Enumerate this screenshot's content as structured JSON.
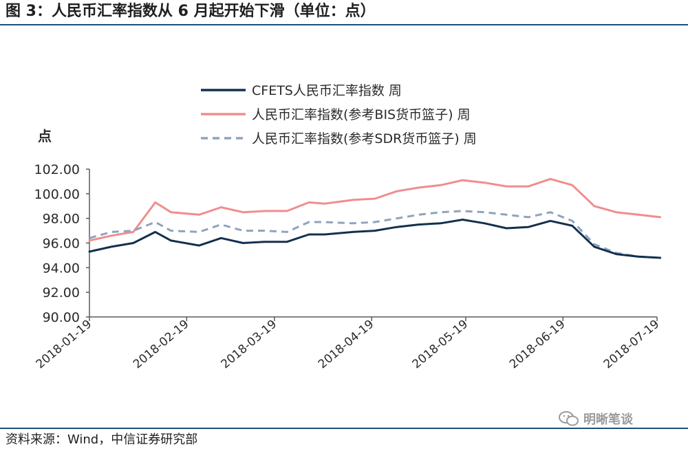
{
  "header": {
    "title": "图 3：人民币汇率指数从 6 月起开始下滑（单位：点）"
  },
  "footer": {
    "source": "资料来源：Wind，中信证券研究部"
  },
  "watermark": {
    "text": "明晰笔谈",
    "icon": "wechat-icon"
  },
  "colors": {
    "cfets": "#12304f",
    "bis": "#f08d8d",
    "sdr": "#8fa3bd",
    "axis": "#5a5a5a",
    "rule": "#1a4f7a"
  },
  "chart_data": {
    "type": "line",
    "ylabel": "点",
    "ylim": [
      90,
      102
    ],
    "yticks": [
      90,
      92,
      94,
      96,
      98,
      100,
      102
    ],
    "ytick_labels": [
      "90.00",
      "92.00",
      "94.00",
      "96.00",
      "98.00",
      "100.00",
      "102.00"
    ],
    "xtick_labels": [
      "2018-01-19",
      "2018-02-19",
      "2018-03-19",
      "2018-04-19",
      "2018-05-19",
      "2018-06-19",
      "2018-07-19"
    ],
    "x": [
      "2018-01-19",
      "2018-01-26",
      "2018-02-02",
      "2018-02-09",
      "2018-02-14",
      "2018-02-23",
      "2018-03-02",
      "2018-03-09",
      "2018-03-16",
      "2018-03-23",
      "2018-03-30",
      "2018-04-04",
      "2018-04-13",
      "2018-04-20",
      "2018-04-27",
      "2018-05-04",
      "2018-05-11",
      "2018-05-18",
      "2018-05-25",
      "2018-06-01",
      "2018-06-08",
      "2018-06-15",
      "2018-06-22",
      "2018-06-29",
      "2018-07-06",
      "2018-07-13",
      "2018-07-20"
    ],
    "legend_position": "top",
    "grid": false,
    "series": [
      {
        "name": "CFETS人民币汇率指数 周",
        "style": "solid",
        "values": [
          95.3,
          95.7,
          96.0,
          96.9,
          96.2,
          95.8,
          96.4,
          96.0,
          96.1,
          96.1,
          96.7,
          96.7,
          96.9,
          97.0,
          97.3,
          97.5,
          97.6,
          97.9,
          97.6,
          97.2,
          97.3,
          97.8,
          97.4,
          95.7,
          95.1,
          94.9,
          94.8
        ]
      },
      {
        "name": "人民币汇率指数(参考BIS货币篮子) 周",
        "style": "solid",
        "values": [
          96.2,
          96.6,
          96.9,
          99.3,
          98.5,
          98.3,
          98.9,
          98.5,
          98.6,
          98.6,
          99.3,
          99.2,
          99.5,
          99.6,
          100.2,
          100.5,
          100.7,
          101.1,
          100.9,
          100.6,
          100.6,
          101.2,
          100.7,
          99.0,
          98.5,
          98.3,
          98.1
        ]
      },
      {
        "name": "人民币汇率指数(参考SDR货币篮子) 周",
        "style": "dashed",
        "values": [
          96.4,
          96.9,
          97.0,
          97.7,
          97.0,
          96.9,
          97.5,
          97.0,
          97.0,
          96.9,
          97.7,
          97.7,
          97.6,
          97.7,
          98.0,
          98.3,
          98.5,
          98.6,
          98.5,
          98.3,
          98.1,
          98.5,
          97.8,
          95.9,
          95.2,
          94.9,
          94.8
        ]
      }
    ]
  }
}
